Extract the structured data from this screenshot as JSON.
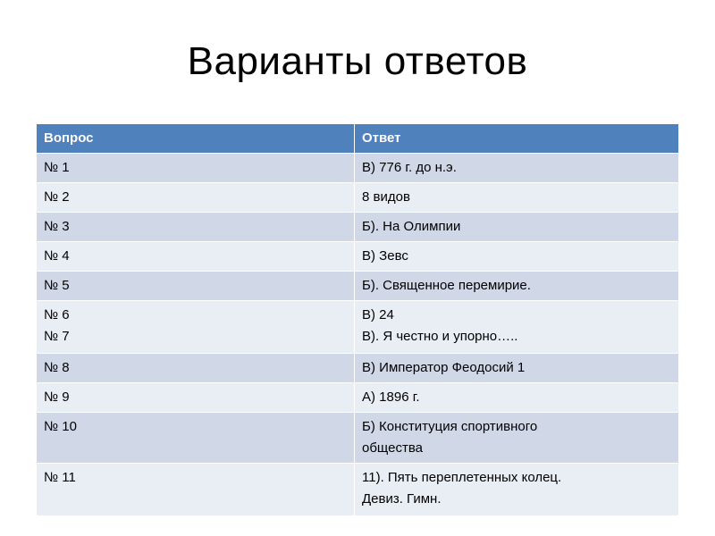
{
  "title": "Варианты ответов",
  "colors": {
    "header": "#4f81bd",
    "row_dark": "#d0d8e8",
    "row_light": "#e9edf4"
  },
  "table": {
    "headers": [
      "Вопрос",
      "Ответ"
    ],
    "rows": [
      {
        "q": [
          "№ 1"
        ],
        "a": [
          "В) 776 г. до н.э."
        ]
      },
      {
        "q": [
          "№ 2"
        ],
        "a": [
          "8 видов"
        ]
      },
      {
        "q": [
          "№ 3"
        ],
        "a": [
          "Б). На Олимпии"
        ]
      },
      {
        "q": [
          "№ 4"
        ],
        "a": [
          "В) Зевс"
        ]
      },
      {
        "q": [
          "№ 5"
        ],
        "a": [
          "Б). Священное перемирие."
        ]
      },
      {
        "q": [
          "№ 6",
          "№ 7"
        ],
        "a": [
          "В) 24",
          "В). Я честно  и упорно….."
        ]
      },
      {
        "q": [
          "№ 8"
        ],
        "a": [
          "В) Император Феодосий 1"
        ]
      },
      {
        "q": [
          "№ 9"
        ],
        "a": [
          "А) 1896 г."
        ]
      },
      {
        "q": [
          "№ 10"
        ],
        "a": [
          "Б) Конституция спортивного",
          "общества"
        ]
      },
      {
        "q": [
          "№ 11"
        ],
        "a": [
          "11).  Пять переплетенных колец.",
          "Девиз. Гимн."
        ]
      }
    ]
  }
}
